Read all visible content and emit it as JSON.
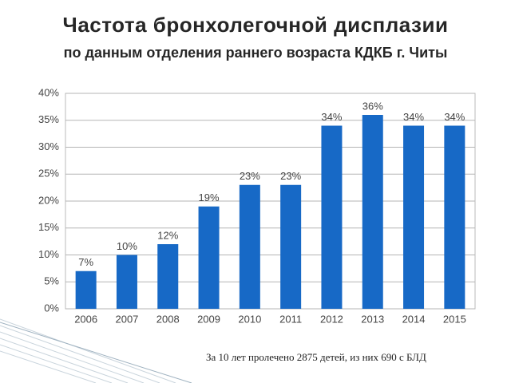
{
  "chart_data": {
    "type": "bar",
    "title": "Частота бронхолегочной дисплазии",
    "subtitle": "по данным отделения раннего возраста КДКБ г. Читы",
    "note": "За 10 лет  пролечено 2875 детей, из них 690 с БЛД",
    "categories": [
      "2006",
      "2007",
      "2008",
      "2009",
      "2010",
      "2011",
      "2012",
      "2013",
      "2014",
      "2015"
    ],
    "values": [
      7,
      10,
      12,
      19,
      23,
      23,
      34,
      36,
      34,
      34
    ],
    "value_labels": [
      "7%",
      "10%",
      "12%",
      "19%",
      "23%",
      "23%",
      "34%",
      "36%",
      "34%",
      "34%"
    ],
    "color": "#1769c6",
    "ylim": [
      0,
      40
    ],
    "yticks": [
      {
        "value": 0,
        "label": "0%"
      },
      {
        "value": 5,
        "label": "5%"
      },
      {
        "value": 10,
        "label": "10%"
      },
      {
        "value": 15,
        "label": "15%"
      },
      {
        "value": 20,
        "label": "20%"
      },
      {
        "value": 25,
        "label": "25%"
      },
      {
        "value": 30,
        "label": "30%"
      },
      {
        "value": 35,
        "label": "35%"
      },
      {
        "value": 40,
        "label": "40%"
      }
    ],
    "grid": true
  }
}
